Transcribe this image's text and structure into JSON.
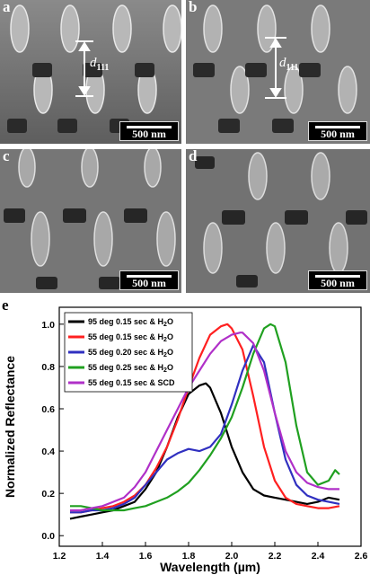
{
  "panels": [
    {
      "id": "a",
      "label": "a",
      "scale": "500 nm",
      "annotation": "d",
      "annotation_sub": "111"
    },
    {
      "id": "b",
      "label": "b",
      "scale": "500 nm",
      "annotation": "d",
      "annotation_sub": "111"
    },
    {
      "id": "c",
      "label": "c",
      "scale": "500 nm"
    },
    {
      "id": "d",
      "label": "d",
      "scale": "500 nm"
    }
  ],
  "panel_e_label": "e",
  "chart_data": {
    "type": "line",
    "xlabel": "Wavelength (µm)",
    "ylabel": "Normalized Reflectance",
    "xlim": [
      1.2,
      2.6
    ],
    "ylim": [
      -0.05,
      1.08
    ],
    "xticks": [
      1.2,
      1.4,
      1.6,
      1.8,
      2.0,
      2.2,
      2.4,
      2.6
    ],
    "yticks": [
      0.0,
      0.2,
      0.4,
      0.6,
      0.8,
      1.0
    ],
    "legend_position": "top-left",
    "series": [
      {
        "name": "95 deg 0.15 sec & H2O",
        "color": "#000000",
        "x": [
          1.25,
          1.3,
          1.35,
          1.4,
          1.45,
          1.5,
          1.55,
          1.6,
          1.65,
          1.7,
          1.75,
          1.8,
          1.85,
          1.88,
          1.9,
          1.95,
          2.0,
          2.05,
          2.1,
          2.15,
          2.2,
          2.25,
          2.3,
          2.35,
          2.4,
          2.45,
          2.5
        ],
        "y": [
          0.08,
          0.09,
          0.1,
          0.11,
          0.12,
          0.14,
          0.16,
          0.22,
          0.3,
          0.42,
          0.56,
          0.67,
          0.71,
          0.72,
          0.7,
          0.58,
          0.42,
          0.3,
          0.22,
          0.19,
          0.18,
          0.17,
          0.16,
          0.15,
          0.16,
          0.18,
          0.17
        ]
      },
      {
        "name": "55 deg 0.15 sec & H2O",
        "color": "#ff2020",
        "x": [
          1.25,
          1.3,
          1.35,
          1.4,
          1.45,
          1.5,
          1.55,
          1.6,
          1.65,
          1.7,
          1.75,
          1.8,
          1.85,
          1.9,
          1.95,
          1.98,
          2.0,
          2.05,
          2.1,
          2.15,
          2.2,
          2.25,
          2.3,
          2.35,
          2.4,
          2.45,
          2.5
        ],
        "y": [
          0.11,
          0.11,
          0.12,
          0.13,
          0.14,
          0.16,
          0.19,
          0.24,
          0.32,
          0.42,
          0.55,
          0.7,
          0.84,
          0.95,
          0.99,
          1.0,
          0.98,
          0.88,
          0.66,
          0.42,
          0.26,
          0.18,
          0.15,
          0.14,
          0.13,
          0.13,
          0.14
        ]
      },
      {
        "name": "55 deg 0.20 sec & H2O",
        "color": "#3030c0",
        "x": [
          1.25,
          1.3,
          1.35,
          1.4,
          1.45,
          1.5,
          1.55,
          1.6,
          1.65,
          1.7,
          1.75,
          1.8,
          1.85,
          1.9,
          1.95,
          2.0,
          2.05,
          2.1,
          2.15,
          2.2,
          2.25,
          2.3,
          2.35,
          2.4,
          2.45,
          2.5
        ],
        "y": [
          0.11,
          0.11,
          0.12,
          0.12,
          0.13,
          0.15,
          0.18,
          0.24,
          0.3,
          0.36,
          0.39,
          0.41,
          0.4,
          0.42,
          0.48,
          0.62,
          0.78,
          0.9,
          0.82,
          0.58,
          0.36,
          0.24,
          0.19,
          0.17,
          0.16,
          0.15
        ]
      },
      {
        "name": "55 deg 0.25 sec & H2O",
        "color": "#20a020",
        "x": [
          1.25,
          1.3,
          1.35,
          1.4,
          1.45,
          1.5,
          1.55,
          1.6,
          1.65,
          1.7,
          1.75,
          1.8,
          1.85,
          1.9,
          1.95,
          2.0,
          2.05,
          2.1,
          2.15,
          2.18,
          2.2,
          2.25,
          2.3,
          2.35,
          2.4,
          2.45,
          2.48,
          2.5
        ],
        "y": [
          0.14,
          0.14,
          0.13,
          0.12,
          0.12,
          0.12,
          0.13,
          0.14,
          0.16,
          0.18,
          0.21,
          0.25,
          0.31,
          0.38,
          0.46,
          0.56,
          0.7,
          0.86,
          0.98,
          1.0,
          0.99,
          0.82,
          0.52,
          0.3,
          0.24,
          0.26,
          0.31,
          0.29
        ]
      },
      {
        "name": "55 deg 0.15 sec & SCD",
        "color": "#b030c8",
        "x": [
          1.25,
          1.3,
          1.35,
          1.4,
          1.45,
          1.5,
          1.55,
          1.6,
          1.65,
          1.7,
          1.75,
          1.8,
          1.85,
          1.9,
          1.95,
          2.0,
          2.04,
          2.05,
          2.1,
          2.15,
          2.2,
          2.25,
          2.3,
          2.35,
          2.4,
          2.45,
          2.5
        ],
        "y": [
          0.12,
          0.12,
          0.13,
          0.14,
          0.16,
          0.18,
          0.23,
          0.3,
          0.4,
          0.5,
          0.6,
          0.7,
          0.78,
          0.86,
          0.92,
          0.95,
          0.96,
          0.96,
          0.91,
          0.78,
          0.58,
          0.4,
          0.3,
          0.25,
          0.23,
          0.22,
          0.22
        ]
      }
    ]
  }
}
